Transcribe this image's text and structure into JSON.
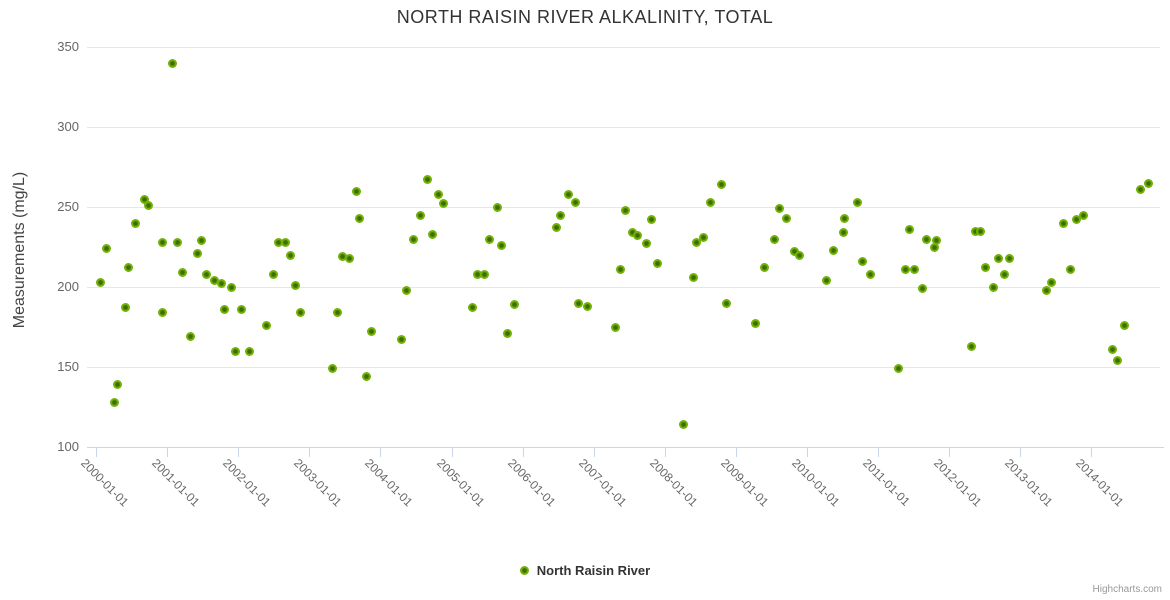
{
  "title": "NORTH RAISIN RIVER ALKALINITY, TOTAL",
  "legend": {
    "label": "North Raisin River"
  },
  "credits": "Highcharts.com",
  "colors": {
    "point": "#72b106",
    "point_core": "#3c6e02",
    "grid": "#e6e6e6",
    "axis_line": "#ccd6eb",
    "label": "#666666",
    "title": "#333333",
    "axis_title": "#444444"
  },
  "y_axis": {
    "title": "Measurements (mg/L)",
    "ticks": [
      350,
      300,
      250,
      200,
      150,
      100
    ]
  },
  "x_axis": {
    "tick_labels": [
      "2000-01-01",
      "2001-01-01",
      "2002-01-01",
      "2003-01-01",
      "2004-01-01",
      "2005-01-01",
      "2006-01-01",
      "2007-01-01",
      "2008-01-01",
      "2009-01-01",
      "2010-01-01",
      "2011-01-01",
      "2012-01-01",
      "2013-01-01",
      "2014-01-01"
    ]
  },
  "chart_data": {
    "type": "scatter",
    "title": "NORTH RAISIN RIVER ALKALINITY, TOTAL",
    "xlabel": "",
    "ylabel": "Measurements (mg/L)",
    "xlim": [
      1999.87,
      2014.97
    ],
    "ylim": [
      100,
      350
    ],
    "x_ticks": [
      2000,
      2001,
      2002,
      2003,
      2004,
      2005,
      2006,
      2007,
      2008,
      2009,
      2010,
      2011,
      2012,
      2013,
      2014
    ],
    "y_ticks": [
      100,
      150,
      200,
      250,
      300,
      350
    ],
    "grid": true,
    "legend_position": "bottom",
    "series": [
      {
        "name": "North Raisin River",
        "color": "#72b106",
        "points": [
          [
            2000.06,
            203
          ],
          [
            2000.14,
            224
          ],
          [
            2000.25,
            128
          ],
          [
            2000.3,
            139
          ],
          [
            2000.41,
            187
          ],
          [
            2000.45,
            212
          ],
          [
            2000.55,
            240
          ],
          [
            2000.68,
            255
          ],
          [
            2000.73,
            251
          ],
          [
            2000.93,
            228
          ],
          [
            2000.93,
            184
          ],
          [
            2001.07,
            340
          ],
          [
            2001.14,
            228
          ],
          [
            2001.22,
            209
          ],
          [
            2001.32,
            169
          ],
          [
            2001.43,
            221
          ],
          [
            2001.48,
            229
          ],
          [
            2001.55,
            208
          ],
          [
            2001.66,
            204
          ],
          [
            2001.76,
            202
          ],
          [
            2001.81,
            186
          ],
          [
            2001.9,
            200
          ],
          [
            2001.96,
            160
          ],
          [
            2002.04,
            186
          ],
          [
            2002.15,
            160
          ],
          [
            2002.39,
            176
          ],
          [
            2002.49,
            208
          ],
          [
            2002.56,
            228
          ],
          [
            2002.66,
            228
          ],
          [
            2002.74,
            220
          ],
          [
            2002.81,
            201
          ],
          [
            2002.88,
            184
          ],
          [
            2003.32,
            149
          ],
          [
            2003.39,
            184
          ],
          [
            2003.46,
            219
          ],
          [
            2003.57,
            218
          ],
          [
            2003.66,
            260
          ],
          [
            2003.71,
            243
          ],
          [
            2003.81,
            144
          ],
          [
            2003.88,
            172
          ],
          [
            2004.3,
            167
          ],
          [
            2004.36,
            198
          ],
          [
            2004.46,
            230
          ],
          [
            2004.57,
            245
          ],
          [
            2004.66,
            267
          ],
          [
            2004.73,
            233
          ],
          [
            2004.82,
            258
          ],
          [
            2004.88,
            252
          ],
          [
            2005.3,
            187
          ],
          [
            2005.36,
            208
          ],
          [
            2005.47,
            208
          ],
          [
            2005.54,
            230
          ],
          [
            2005.64,
            250
          ],
          [
            2005.71,
            226
          ],
          [
            2005.79,
            171
          ],
          [
            2005.89,
            189
          ],
          [
            2006.48,
            237
          ],
          [
            2006.53,
            245
          ],
          [
            2006.64,
            258
          ],
          [
            2006.74,
            253
          ],
          [
            2006.79,
            190
          ],
          [
            2006.91,
            188
          ],
          [
            2007.31,
            175
          ],
          [
            2007.38,
            211
          ],
          [
            2007.45,
            248
          ],
          [
            2007.54,
            234
          ],
          [
            2007.62,
            232
          ],
          [
            2007.74,
            227
          ],
          [
            2007.81,
            242
          ],
          [
            2007.9,
            215
          ],
          [
            2008.27,
            114
          ],
          [
            2008.4,
            206
          ],
          [
            2008.45,
            228
          ],
          [
            2008.55,
            231
          ],
          [
            2008.65,
            253
          ],
          [
            2008.8,
            264
          ],
          [
            2008.87,
            190
          ],
          [
            2009.28,
            177
          ],
          [
            2009.4,
            212
          ],
          [
            2009.55,
            230
          ],
          [
            2009.62,
            249
          ],
          [
            2009.72,
            243
          ],
          [
            2009.82,
            222
          ],
          [
            2009.89,
            220
          ],
          [
            2010.28,
            204
          ],
          [
            2010.37,
            223
          ],
          [
            2010.51,
            234
          ],
          [
            2010.53,
            243
          ],
          [
            2010.72,
            253
          ],
          [
            2010.79,
            216
          ],
          [
            2010.9,
            208
          ],
          [
            2011.29,
            149
          ],
          [
            2011.39,
            211
          ],
          [
            2011.45,
            236
          ],
          [
            2011.52,
            211
          ],
          [
            2011.63,
            199
          ],
          [
            2011.69,
            230
          ],
          [
            2011.8,
            225
          ],
          [
            2011.83,
            229
          ],
          [
            2012.32,
            163
          ],
          [
            2012.38,
            235
          ],
          [
            2012.45,
            235
          ],
          [
            2012.52,
            212
          ],
          [
            2012.63,
            200
          ],
          [
            2012.7,
            218
          ],
          [
            2012.78,
            208
          ],
          [
            2012.85,
            218
          ],
          [
            2013.37,
            198
          ],
          [
            2013.44,
            203
          ],
          [
            2013.61,
            240
          ],
          [
            2013.71,
            211
          ],
          [
            2013.79,
            242
          ],
          [
            2013.9,
            245
          ],
          [
            2014.3,
            161
          ],
          [
            2014.37,
            154
          ],
          [
            2014.47,
            176
          ],
          [
            2014.7,
            261
          ],
          [
            2014.81,
            265
          ]
        ]
      }
    ]
  }
}
